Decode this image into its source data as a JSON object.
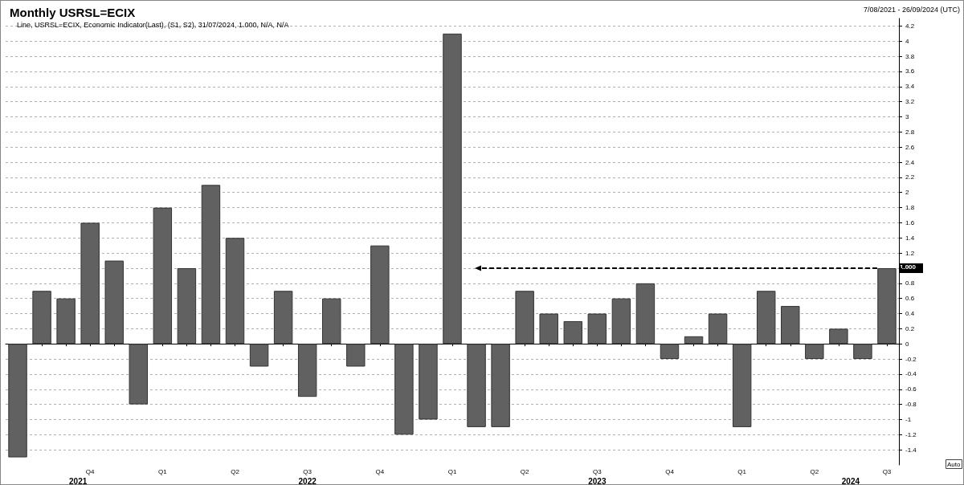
{
  "chart_data": {
    "type": "bar",
    "title": "Monthly USRSL=ECIX",
    "annotations": [
      "7/08/2021 - 26/09/2024 (UTC)",
      "Line, USRSL=ECIX, Economic Indicator(Last), (S1, S2), 31/07/2024, 1.000, N/A, N/A",
      "1.000",
      "Auto",
      "2021",
      "2022",
      "2023",
      "2024"
    ],
    "categories": [
      null,
      null,
      null,
      "Q4",
      null,
      null,
      "Q1",
      null,
      null,
      "Q2",
      null,
      null,
      "Q3",
      null,
      null,
      "Q4",
      null,
      null,
      "Q1",
      null,
      null,
      "Q2",
      null,
      null,
      "Q3",
      null,
      null,
      "Q4",
      null,
      null,
      "Q1",
      null,
      null,
      "Q2",
      null,
      null,
      "Q3"
    ],
    "values": [
      -1.5,
      0.7,
      0.6,
      1.6,
      1.1,
      -0.8,
      1.8,
      1.0,
      2.1,
      1.4,
      -0.3,
      0.7,
      -0.7,
      0.6,
      -0.3,
      1.3,
      -1.2,
      -1.0,
      4.1,
      -1.1,
      -1.1,
      0.7,
      0.4,
      0.3,
      0.4,
      0.6,
      0.8,
      -0.2,
      0.1,
      0.4,
      -1.1,
      0.7,
      0.5,
      -0.2,
      0.2,
      -0.2,
      1.0
    ],
    "color": "#616161",
    "ylim": [
      -1.6,
      4.3
    ],
    "yticks": [
      -1.4,
      -1.2,
      -1,
      -0.8,
      -0.6,
      -0.4,
      -0.2,
      0,
      0.2,
      0.4,
      0.6,
      0.8,
      {
        "value": 1,
        "label": null
      },
      1.2,
      1.4,
      1.6,
      1.8,
      2,
      2.2,
      2.4,
      2.6,
      2.8,
      3,
      3.2,
      3.4,
      3.6,
      3.8,
      4,
      4.2
    ],
    "grid": "y"
  }
}
